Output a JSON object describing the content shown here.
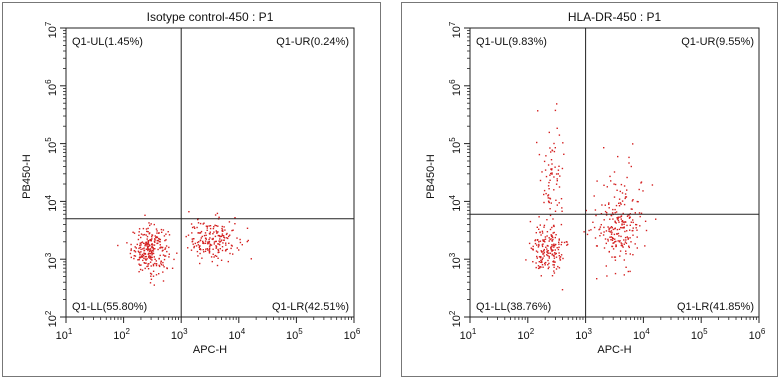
{
  "chart_data": [
    {
      "type": "scatter",
      "title": "Isotype control-450 : P1",
      "xlabel": "APC-H",
      "ylabel": "PB450-H",
      "x_scale": "log",
      "y_scale": "log",
      "xlim": [
        10,
        1000000
      ],
      "ylim": [
        100,
        10000000
      ],
      "x_ticks": [
        {
          "base": "10",
          "exp": "1"
        },
        {
          "base": "10",
          "exp": "2"
        },
        {
          "base": "10",
          "exp": "3"
        },
        {
          "base": "10",
          "exp": "4"
        },
        {
          "base": "10",
          "exp": "5"
        },
        {
          "base": "10",
          "exp": "6"
        }
      ],
      "y_ticks": [
        {
          "base": "10",
          "exp": "2"
        },
        {
          "base": "10",
          "exp": "3"
        },
        {
          "base": "10",
          "exp": "4"
        },
        {
          "base": "10",
          "exp": "5"
        },
        {
          "base": "10",
          "exp": "6"
        },
        {
          "base": "10",
          "exp": "7"
        }
      ],
      "gate": {
        "x": 1000,
        "y": 5000
      },
      "quadrants": {
        "UL": "Q1-UL(1.45%)",
        "UR": "Q1-UR(0.24%)",
        "LL": "Q1-LL(55.80%)",
        "LR": "Q1-LR(42.51%)"
      },
      "point_color": "#d42020",
      "clusters": [
        {
          "cx": 280,
          "cy": 1500,
          "sx": 0.16,
          "sy": 0.2,
          "n": 260
        },
        {
          "cx": 3500,
          "cy": 2200,
          "sx": 0.22,
          "sy": 0.18,
          "n": 200
        }
      ]
    },
    {
      "type": "scatter",
      "title": "HLA-DR-450 : P1",
      "xlabel": "APC-H",
      "ylabel": "PB450-H",
      "x_scale": "log",
      "y_scale": "log",
      "xlim": [
        10,
        1000000
      ],
      "ylim": [
        100,
        10000000
      ],
      "x_ticks": [
        {
          "base": "10",
          "exp": "1"
        },
        {
          "base": "10",
          "exp": "2"
        },
        {
          "base": "10",
          "exp": "3"
        },
        {
          "base": "10",
          "exp": "4"
        },
        {
          "base": "10",
          "exp": "5"
        },
        {
          "base": "10",
          "exp": "6"
        }
      ],
      "y_ticks": [
        {
          "base": "10",
          "exp": "2"
        },
        {
          "base": "10",
          "exp": "3"
        },
        {
          "base": "10",
          "exp": "4"
        },
        {
          "base": "10",
          "exp": "5"
        },
        {
          "base": "10",
          "exp": "6"
        },
        {
          "base": "10",
          "exp": "7"
        }
      ],
      "gate": {
        "x": 1000,
        "y": 6000
      },
      "quadrants": {
        "UL": "Q1-UL(9.83%)",
        "UR": "Q1-UR(9.55%)",
        "LL": "Q1-LL(38.76%)",
        "LR": "Q1-LR(41.85%)"
      },
      "point_color": "#d42020",
      "clusters": [
        {
          "cx": 220,
          "cy": 1400,
          "sx": 0.14,
          "sy": 0.18,
          "n": 170
        },
        {
          "cx": 250,
          "cy": 20000,
          "sx": 0.12,
          "sy": 0.7,
          "n": 90
        },
        {
          "cx": 3500,
          "cy": 3000,
          "sx": 0.2,
          "sy": 0.28,
          "n": 200
        },
        {
          "cx": 4000,
          "cy": 15000,
          "sx": 0.22,
          "sy": 0.35,
          "n": 40
        }
      ]
    }
  ]
}
